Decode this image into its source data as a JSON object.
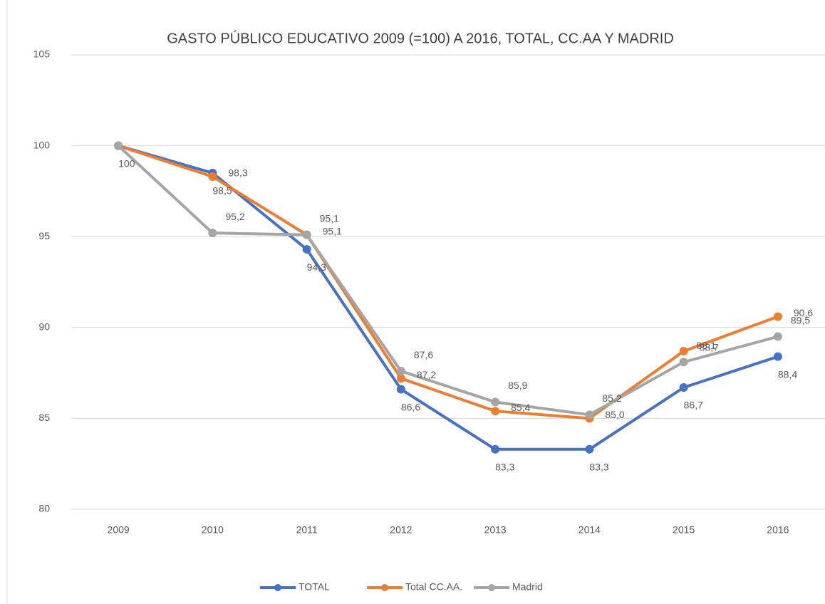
{
  "chart_data": {
    "type": "line",
    "title": "GASTO PÚBLICO EDUCATIVO 2009 (=100) A 2016, TOTAL, CC.AA Y MADRID",
    "categories": [
      "2009",
      "2010",
      "2011",
      "2012",
      "2013",
      "2014",
      "2015",
      "2016"
    ],
    "series": [
      {
        "name": "TOTAL",
        "color": "#4472c4",
        "values": [
          100,
          98.5,
          94.3,
          86.6,
          83.3,
          83.3,
          86.7,
          88.4
        ],
        "value_labels": [
          "100",
          "98,5",
          "94,3",
          "86,6",
          "83,3",
          "83,3",
          "86,7",
          "88,4"
        ]
      },
      {
        "name": "Total CC.AA.",
        "color": "#ed7d31",
        "values": [
          100,
          98.3,
          95.1,
          87.2,
          85.4,
          85.0,
          88.7,
          90.6
        ],
        "value_labels": [
          null,
          "98,3",
          "95,1",
          "87,2",
          "85,4",
          "85,0",
          "88,7",
          "90,6"
        ]
      },
      {
        "name": "Madrid",
        "color": "#a5a5a5",
        "values": [
          100,
          95.2,
          95.1,
          87.6,
          85.9,
          85.2,
          88.1,
          89.5
        ],
        "value_labels": [
          null,
          "95,2",
          "95,1",
          "87,6",
          "85,9",
          "85,2",
          "88,1",
          "89,5"
        ]
      }
    ],
    "ylim": [
      80,
      105
    ],
    "yticks": [
      80,
      85,
      90,
      95,
      100,
      105
    ],
    "grid": true,
    "legend": "bottom"
  }
}
